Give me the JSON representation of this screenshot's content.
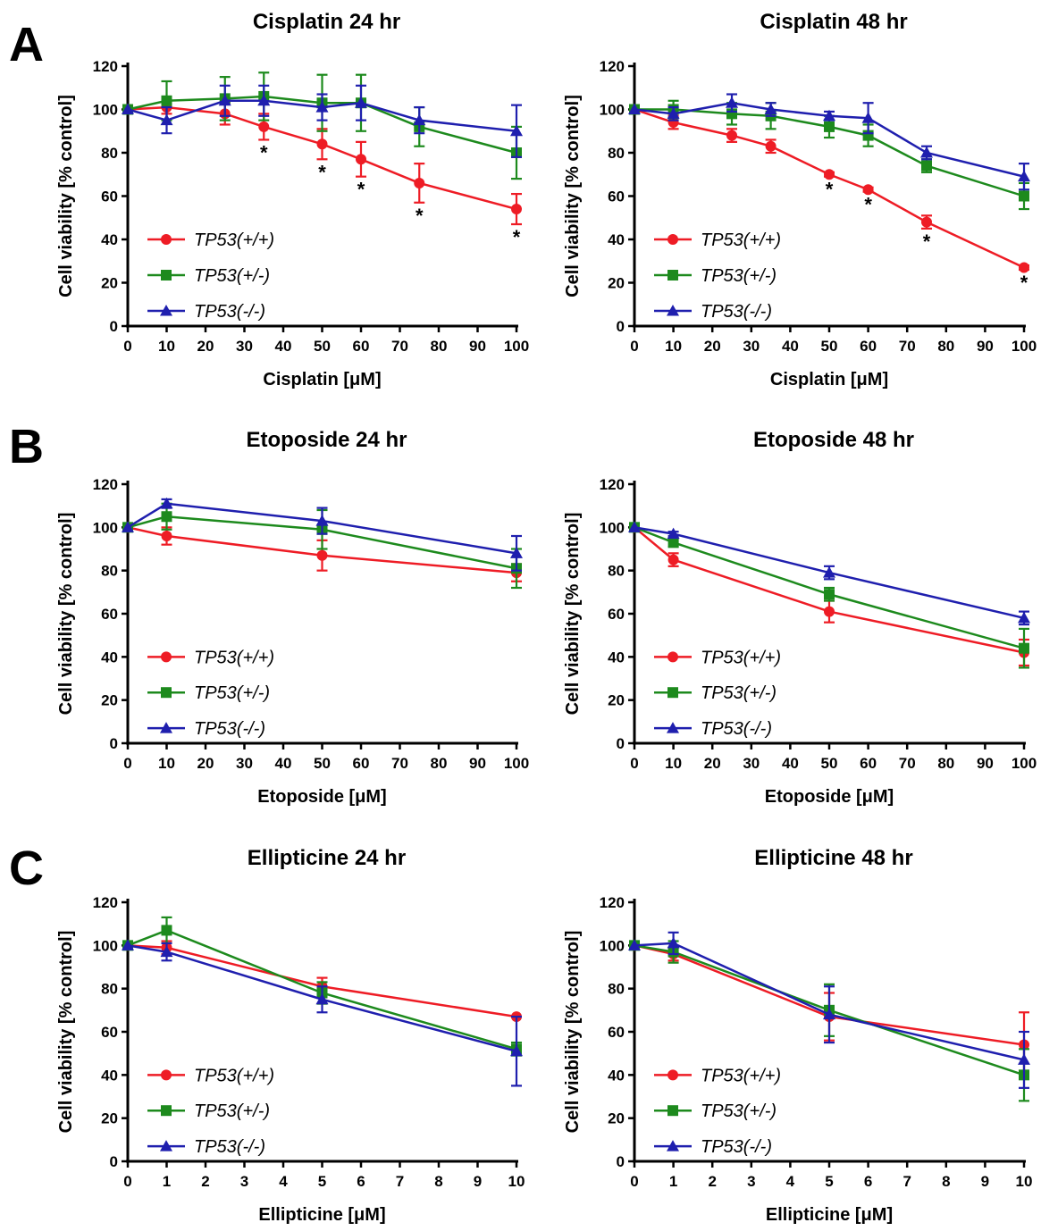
{
  "panel_labels": [
    "A",
    "B",
    "C"
  ],
  "chart_data": [
    {
      "type": "line",
      "panel": "A",
      "title": "Cisplatin 24 hr",
      "xlabel": "Cisplatin [μM]",
      "ylabel": "Cell viability [% control]",
      "xlim": [
        0,
        100
      ],
      "xticks": [
        0,
        10,
        20,
        30,
        40,
        50,
        60,
        70,
        80,
        90,
        100
      ],
      "ylim": [
        0,
        120
      ],
      "yticks": [
        0,
        20,
        40,
        60,
        80,
        100,
        120
      ],
      "grid": false,
      "legend": "bottom-left",
      "x": [
        0,
        10,
        25,
        35,
        50,
        60,
        75,
        100
      ],
      "series": [
        {
          "name": "TP53(+/+)",
          "color": "#ee1c25",
          "marker": "circle",
          "values": [
            100,
            101,
            98,
            92,
            84,
            77,
            66,
            54
          ],
          "errors": [
            0,
            3,
            5,
            6,
            7,
            8,
            9,
            7
          ],
          "significant": [
            false,
            false,
            false,
            true,
            true,
            true,
            true,
            true
          ]
        },
        {
          "name": "TP53(+/-)",
          "color": "#1d8a1d",
          "marker": "square",
          "values": [
            100,
            104,
            105,
            106,
            103,
            103,
            92,
            80
          ],
          "errors": [
            0,
            9,
            10,
            11,
            13,
            13,
            9,
            12
          ]
        },
        {
          "name": "TP53(-/-)",
          "color": "#1f1fae",
          "marker": "triangle",
          "values": [
            100,
            95,
            104,
            104,
            101,
            103,
            95,
            90
          ],
          "errors": [
            0,
            6,
            7,
            7,
            6,
            8,
            6,
            12
          ]
        }
      ]
    },
    {
      "type": "line",
      "panel": "A",
      "title": "Cisplatin 48 hr",
      "xlabel": "Cisplatin [μM]",
      "ylabel": "Cell viability [% control]",
      "xlim": [
        0,
        100
      ],
      "xticks": [
        0,
        10,
        20,
        30,
        40,
        50,
        60,
        70,
        80,
        90,
        100
      ],
      "ylim": [
        0,
        120
      ],
      "yticks": [
        0,
        20,
        40,
        60,
        80,
        100,
        120
      ],
      "grid": false,
      "legend": "bottom-left",
      "x": [
        0,
        10,
        25,
        35,
        50,
        60,
        75,
        100
      ],
      "series": [
        {
          "name": "TP53(+/+)",
          "color": "#ee1c25",
          "marker": "circle",
          "values": [
            100,
            94,
            88,
            83,
            70,
            63,
            48,
            27
          ],
          "errors": [
            0,
            3,
            3,
            3,
            1,
            1,
            3,
            1
          ],
          "significant": [
            false,
            false,
            false,
            false,
            true,
            true,
            true,
            true
          ]
        },
        {
          "name": "TP53(+/-)",
          "color": "#1d8a1d",
          "marker": "square",
          "values": [
            100,
            100,
            98,
            97,
            92,
            88,
            74,
            60
          ],
          "errors": [
            0,
            4,
            5,
            6,
            5,
            5,
            3,
            6
          ]
        },
        {
          "name": "TP53(-/-)",
          "color": "#1f1fae",
          "marker": "triangle",
          "values": [
            100,
            98,
            103,
            100,
            97,
            96,
            80,
            69
          ],
          "errors": [
            0,
            3,
            4,
            3,
            2,
            7,
            3,
            6
          ]
        }
      ]
    },
    {
      "type": "line",
      "panel": "B",
      "title": "Etoposide 24 hr",
      "xlabel": "Etoposide [μM]",
      "ylabel": "Cell viability [% control]",
      "xlim": [
        0,
        100
      ],
      "xticks": [
        0,
        10,
        20,
        30,
        40,
        50,
        60,
        70,
        80,
        90,
        100
      ],
      "ylim": [
        0,
        120
      ],
      "yticks": [
        0,
        20,
        40,
        60,
        80,
        100,
        120
      ],
      "grid": false,
      "legend": "bottom-left",
      "x": [
        0,
        10,
        50,
        100
      ],
      "series": [
        {
          "name": "TP53(+/+)",
          "color": "#ee1c25",
          "marker": "circle",
          "values": [
            100,
            96,
            87,
            79
          ],
          "errors": [
            0,
            4,
            7,
            4
          ]
        },
        {
          "name": "TP53(+/-)",
          "color": "#1d8a1d",
          "marker": "square",
          "values": [
            100,
            105,
            99,
            81
          ],
          "errors": [
            0,
            6,
            9,
            9
          ]
        },
        {
          "name": "TP53(-/-)",
          "color": "#1f1fae",
          "marker": "triangle",
          "values": [
            100,
            111,
            103,
            88
          ],
          "errors": [
            0,
            2,
            6,
            8
          ]
        }
      ]
    },
    {
      "type": "line",
      "panel": "B",
      "title": "Etoposide 48 hr",
      "xlabel": "Etoposide [μM]",
      "ylabel": "Cell viability [% control]",
      "xlim": [
        0,
        100
      ],
      "xticks": [
        0,
        10,
        20,
        30,
        40,
        50,
        60,
        70,
        80,
        90,
        100
      ],
      "ylim": [
        0,
        120
      ],
      "yticks": [
        0,
        20,
        40,
        60,
        80,
        100,
        120
      ],
      "grid": false,
      "legend": "bottom-left",
      "x": [
        0,
        10,
        50,
        100
      ],
      "series": [
        {
          "name": "TP53(+/+)",
          "color": "#ee1c25",
          "marker": "circle",
          "values": [
            100,
            85,
            61,
            42
          ],
          "errors": [
            0,
            3,
            5,
            6
          ]
        },
        {
          "name": "TP53(+/-)",
          "color": "#1d8a1d",
          "marker": "square",
          "values": [
            100,
            93,
            69,
            44
          ],
          "errors": [
            0,
            2,
            3,
            9
          ]
        },
        {
          "name": "TP53(-/-)",
          "color": "#1f1fae",
          "marker": "triangle",
          "values": [
            100,
            97,
            79,
            58
          ],
          "errors": [
            0,
            1,
            3,
            3
          ]
        }
      ]
    },
    {
      "type": "line",
      "panel": "C",
      "title": "Ellipticine 24 hr",
      "xlabel": "Ellipticine [μM]",
      "ylabel": "Cell viability [% control]",
      "xlim": [
        0,
        10
      ],
      "xticks": [
        0,
        1,
        2,
        3,
        4,
        5,
        6,
        7,
        8,
        9,
        10
      ],
      "ylim": [
        0,
        120
      ],
      "yticks": [
        0,
        20,
        40,
        60,
        80,
        100,
        120
      ],
      "grid": false,
      "legend": "bottom-left",
      "x": [
        0,
        1,
        5,
        10
      ],
      "series": [
        {
          "name": "TP53(+/+)",
          "color": "#ee1c25",
          "marker": "circle",
          "values": [
            100,
            99,
            81,
            67
          ],
          "errors": [
            0,
            3,
            4,
            0
          ]
        },
        {
          "name": "TP53(+/-)",
          "color": "#1d8a1d",
          "marker": "square",
          "values": [
            100,
            107,
            78,
            52
          ],
          "errors": [
            0,
            6,
            5,
            3
          ]
        },
        {
          "name": "TP53(-/-)",
          "color": "#1f1fae",
          "marker": "triangle",
          "values": [
            100,
            97,
            75,
            51
          ],
          "errors": [
            0,
            4,
            6,
            16
          ]
        }
      ]
    },
    {
      "type": "line",
      "panel": "C",
      "title": "Ellipticine 48 hr",
      "xlabel": "Ellipticine [μM]",
      "ylabel": "Cell viability [% control]",
      "xlim": [
        0,
        10
      ],
      "xticks": [
        0,
        1,
        2,
        3,
        4,
        5,
        6,
        7,
        8,
        9,
        10
      ],
      "ylim": [
        0,
        120
      ],
      "yticks": [
        0,
        20,
        40,
        60,
        80,
        100,
        120
      ],
      "grid": false,
      "legend": "bottom-left",
      "x": [
        0,
        1,
        5,
        10
      ],
      "series": [
        {
          "name": "TP53(+/+)",
          "color": "#ee1c25",
          "marker": "circle",
          "values": [
            100,
            96,
            67,
            54
          ],
          "errors": [
            0,
            3,
            11,
            15
          ]
        },
        {
          "name": "TP53(+/-)",
          "color": "#1d8a1d",
          "marker": "square",
          "values": [
            100,
            97,
            70,
            40
          ],
          "errors": [
            0,
            5,
            12,
            12
          ]
        },
        {
          "name": "TP53(-/-)",
          "color": "#1f1fae",
          "marker": "triangle",
          "values": [
            100,
            101,
            68,
            47
          ],
          "errors": [
            0,
            5,
            13,
            13
          ]
        }
      ]
    }
  ]
}
